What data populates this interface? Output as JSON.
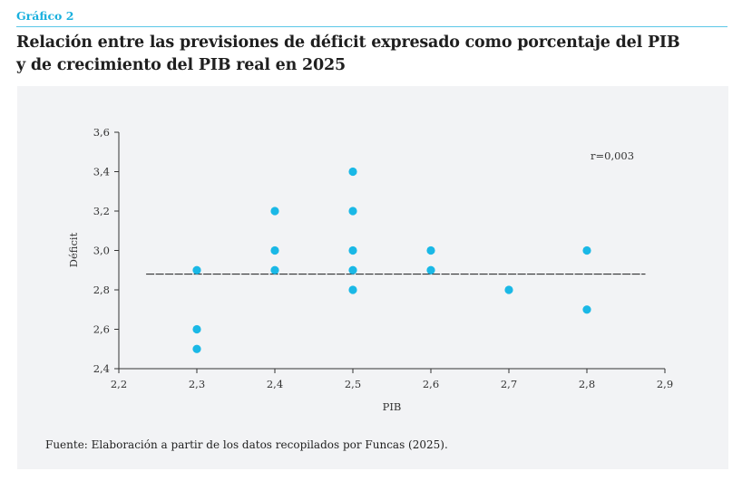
{
  "header": {
    "kicker": "Gráfico 2",
    "title_line1": "Relación entre las previsiones de déficit expresado como porcentaje del PIB",
    "title_line2": "y de crecimiento del PIB real en 2025"
  },
  "footer": {
    "source": "Fuente: Elaboración a partir de los datos recopilados por Funcas (2025)."
  },
  "colors": {
    "accent": "#1ab0de",
    "point": "#1ab8e6",
    "panel": "#f2f3f5"
  },
  "chart_data": {
    "type": "scatter",
    "xlabel": "PIB",
    "ylabel": "Déficit",
    "xlim": [
      2.2,
      2.9
    ],
    "ylim": [
      2.4,
      3.6
    ],
    "x_ticks": [
      "2,2",
      "2,3",
      "2,4",
      "2,5",
      "2,6",
      "2,7",
      "2,8",
      "2,9"
    ],
    "y_ticks": [
      "2,4",
      "2,6",
      "2,8",
      "3,0",
      "3,2",
      "3,4",
      "3,6"
    ],
    "x_tick_values": [
      2.2,
      2.3,
      2.4,
      2.5,
      2.6,
      2.7,
      2.8,
      2.9
    ],
    "y_tick_values": [
      2.4,
      2.6,
      2.8,
      3.0,
      3.2,
      3.4,
      3.6
    ],
    "points": [
      {
        "x": 2.3,
        "y": 2.9
      },
      {
        "x": 2.3,
        "y": 2.6
      },
      {
        "x": 2.3,
        "y": 2.5
      },
      {
        "x": 2.4,
        "y": 3.2
      },
      {
        "x": 2.4,
        "y": 3.0
      },
      {
        "x": 2.4,
        "y": 2.9
      },
      {
        "x": 2.5,
        "y": 3.4
      },
      {
        "x": 2.5,
        "y": 3.2
      },
      {
        "x": 2.5,
        "y": 3.0
      },
      {
        "x": 2.5,
        "y": 2.9
      },
      {
        "x": 2.5,
        "y": 2.8
      },
      {
        "x": 2.6,
        "y": 3.0
      },
      {
        "x": 2.6,
        "y": 2.9
      },
      {
        "x": 2.7,
        "y": 2.8
      },
      {
        "x": 2.8,
        "y": 3.0
      },
      {
        "x": 2.8,
        "y": 2.7
      }
    ],
    "trend_line": {
      "y": 2.88,
      "x_from": 2.235,
      "x_to": 2.875
    },
    "annotation": "r=0,003",
    "grid": false
  }
}
